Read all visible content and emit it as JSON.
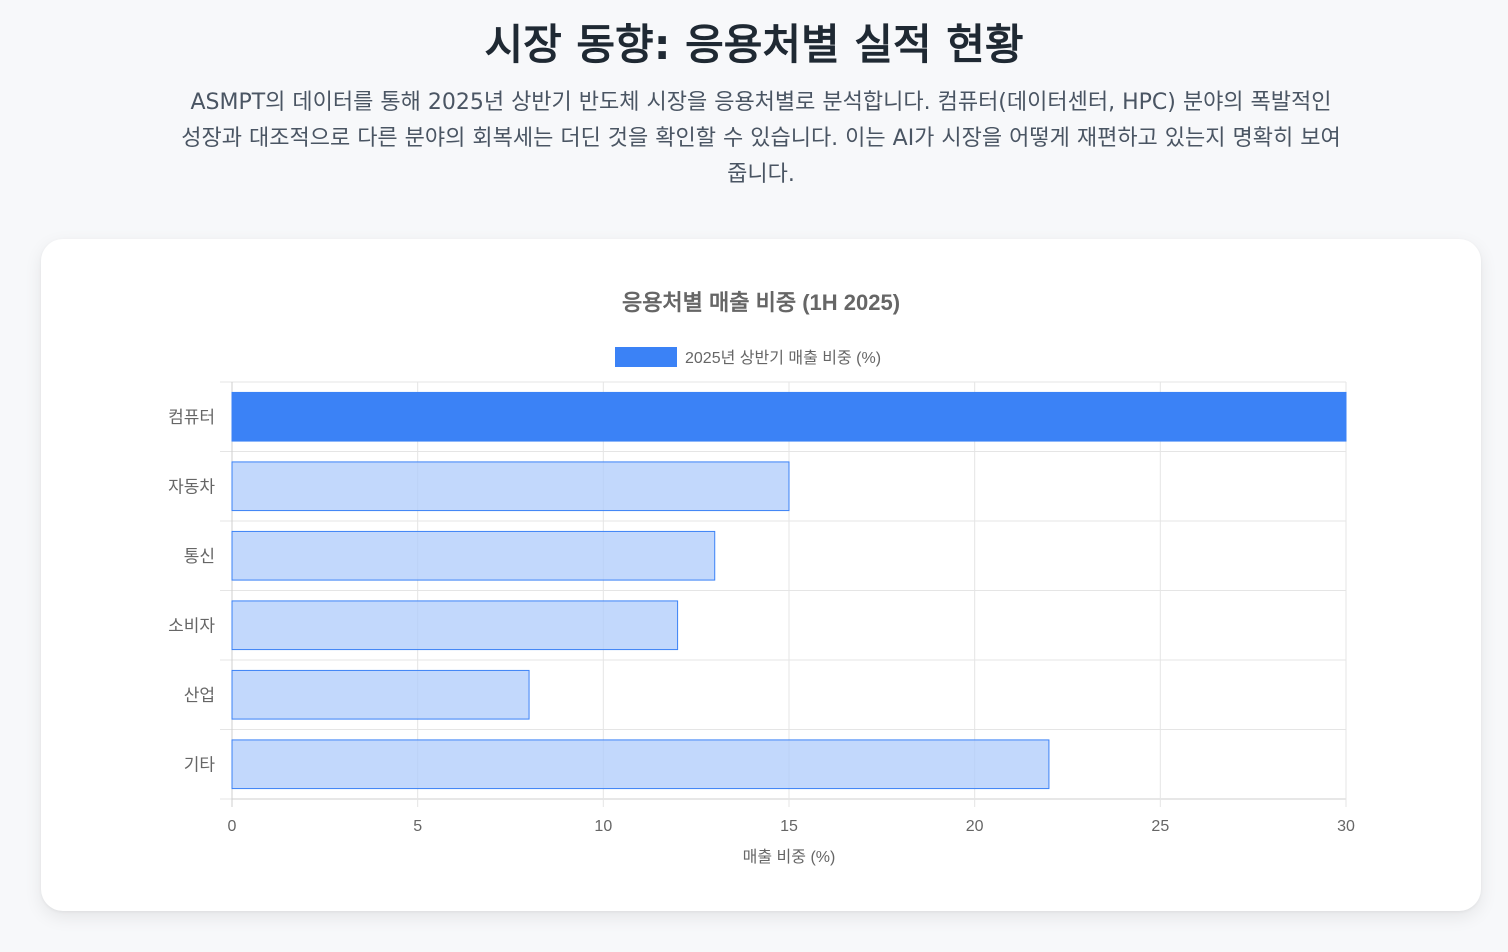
{
  "header": {
    "title": "시장 동향: 응용처별 실적 현황",
    "description": "ASMPT의 데이터를 통해 2025년 상반기 반도체 시장을 응용처별로 분석합니다. 컴퓨터(데이터센터, HPC) 분야의 폭발적인 성장과 대조적으로 다른 분야의 회복세는 더딘 것을 확인할 수 있습니다. 이는 AI가 시장을 어떻게 재편하고 있는지 명확히 보여줍니다."
  },
  "chart_data": {
    "type": "bar",
    "orientation": "horizontal",
    "title": "응용처별 매출 비중 (1H 2025)",
    "categories": [
      "컴퓨터",
      "자동차",
      "통신",
      "소비자",
      "산업",
      "기타"
    ],
    "series": [
      {
        "name": "2025년 상반기 매출 비중 (%)",
        "values": [
          30,
          15,
          13,
          12,
          8,
          22
        ]
      }
    ],
    "xlabel": "매출 비중 (%)",
    "ylabel": "",
    "xlim": [
      0,
      30
    ],
    "x_ticks": [
      "0",
      "5",
      "10",
      "15",
      "20",
      "25",
      "30"
    ],
    "grid": true,
    "legend_position": "top",
    "colors": {
      "highlight_fill": "#3b82f6",
      "normal_fill": "#b1cdfb",
      "bar_border": "#3b82f6",
      "grid": "#e5e5e5",
      "axis_text": "#666666"
    }
  }
}
